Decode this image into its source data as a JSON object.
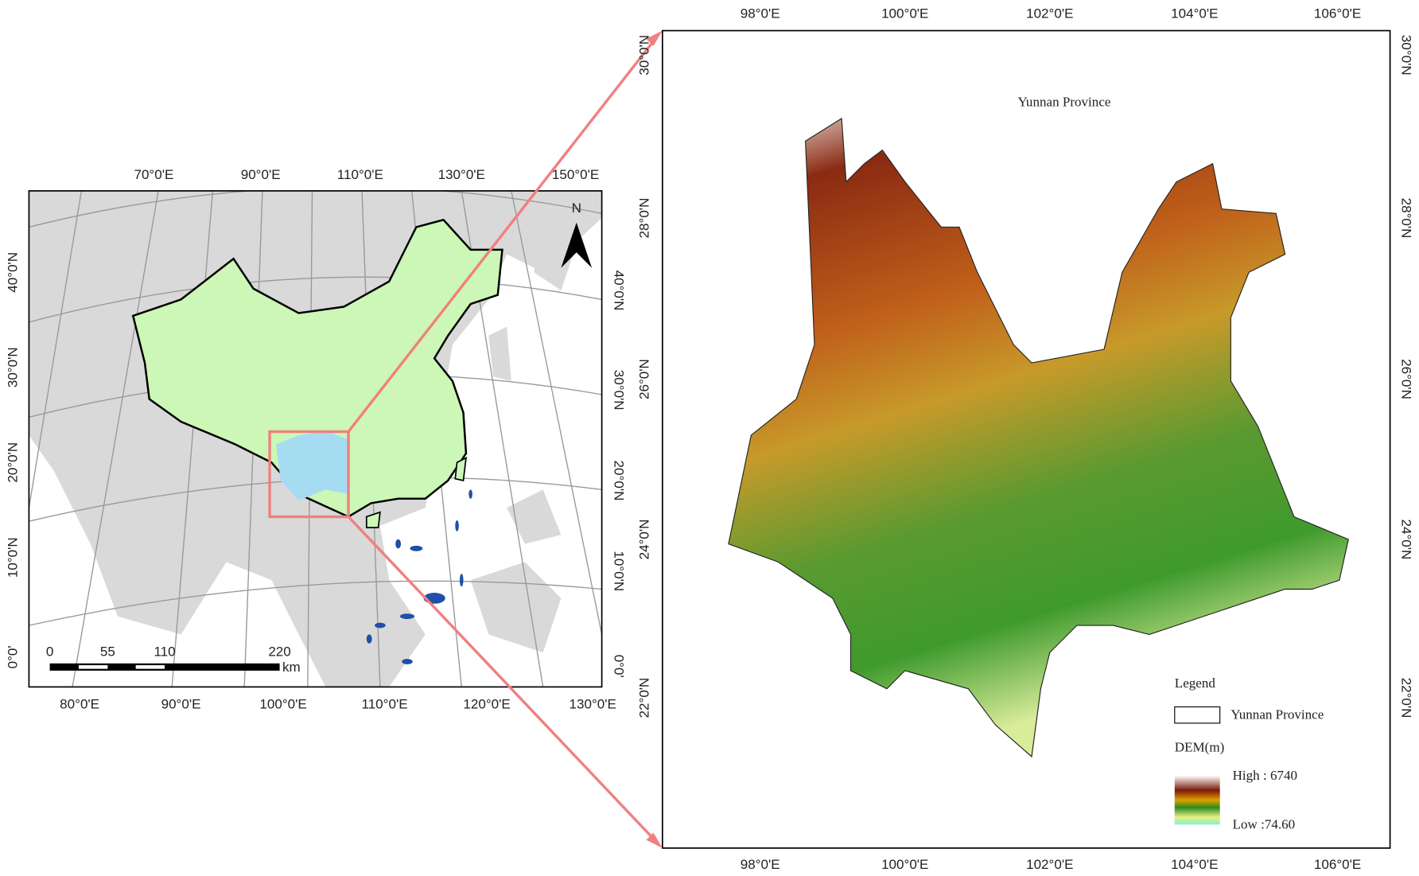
{
  "inset_map": {
    "north_label": "N",
    "top_labels": [
      "70°0'E",
      "90°0'E",
      "110°0'E",
      "130°0'E",
      "150°0'E"
    ],
    "bottom_labels": [
      "80°0'E",
      "90°0'E",
      "100°0'E",
      "110°0'E",
      "120°0'E",
      "130°0'E"
    ],
    "left_labels": [
      "40°0'N",
      "30°0'N",
      "20°0'N",
      "10°0'N",
      "0°0'"
    ],
    "right_labels": [
      "40°0'N",
      "30°0'N",
      "20°0'N",
      "10°0'N",
      "0°0'"
    ],
    "scale_bar": {
      "labels": [
        "0",
        "55",
        "110",
        "220"
      ],
      "unit": "km"
    }
  },
  "main_map": {
    "title": "Yunnan Province",
    "top_labels": [
      "98°0'E",
      "100°0'E",
      "102°0'E",
      "104°0'E",
      "106°0'E"
    ],
    "bottom_labels": [
      "98°0'E",
      "100°0'E",
      "102°0'E",
      "104°0'E",
      "106°0'E"
    ],
    "left_labels": [
      "30°0'N",
      "28°0'N",
      "26°0'N",
      "24°0'N",
      "22°0'N"
    ],
    "right_labels": [
      "30°0'N",
      "28°0'N",
      "26°0'N",
      "24°0'N",
      "22°0'N"
    ],
    "legend": {
      "title": "Legend",
      "boundary_label": "Yunnan Province",
      "dem_title": "DEM(m)",
      "high_label": "High : 6740",
      "low_label": "Low :74.60"
    }
  }
}
